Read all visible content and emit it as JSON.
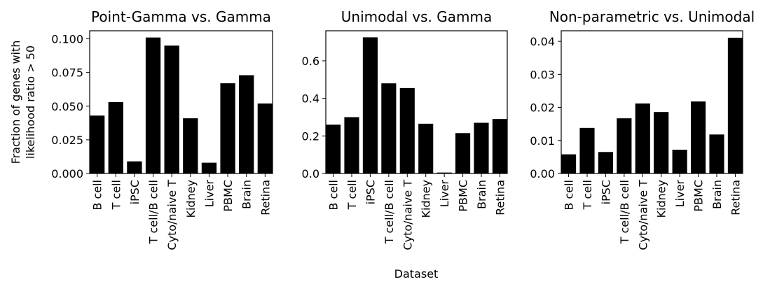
{
  "figure": {
    "ylabel_line1": "Fraction of genes with",
    "ylabel_line2": "likelihood ratio > 50",
    "xlabel": "Dataset"
  },
  "chart_data": [
    {
      "type": "bar",
      "title": "Point-Gamma vs. Gamma",
      "categories": [
        "B cell",
        "T cell",
        "iPSC",
        "T cell/B cell",
        "Cyto/naive T",
        "Kidney",
        "Liver",
        "PBMC",
        "Brain",
        "Retina"
      ],
      "values": [
        0.043,
        0.053,
        0.009,
        0.101,
        0.095,
        0.041,
        0.008,
        0.067,
        0.073,
        0.052
      ],
      "ylim": [
        0,
        0.106
      ],
      "yticks": [
        0.0,
        0.025,
        0.05,
        0.075,
        0.1
      ],
      "ytick_labels": [
        "0.000",
        "0.025",
        "0.050",
        "0.075",
        "0.100"
      ],
      "color": "#000000"
    },
    {
      "type": "bar",
      "title": "Unimodal vs. Gamma",
      "categories": [
        "B cell",
        "T cell",
        "iPSC",
        "T cell/B cell",
        "Cyto/naive T",
        "Kidney",
        "Liver",
        "PBMC",
        "Brain",
        "Retina"
      ],
      "values": [
        0.26,
        0.3,
        0.725,
        0.48,
        0.455,
        0.265,
        0.005,
        0.215,
        0.27,
        0.29
      ],
      "ylim": [
        0,
        0.76
      ],
      "yticks": [
        0.0,
        0.2,
        0.4,
        0.6
      ],
      "ytick_labels": [
        "0.0",
        "0.2",
        "0.4",
        "0.6"
      ],
      "color": "#000000"
    },
    {
      "type": "bar",
      "title": "Non-parametric vs. Unimodal",
      "categories": [
        "B cell",
        "T cell",
        "iPSC",
        "T cell/B cell",
        "Cyto/naive T",
        "Kidney",
        "Liver",
        "PBMC",
        "Brain",
        "Retina"
      ],
      "values": [
        0.0058,
        0.0138,
        0.0065,
        0.0167,
        0.0212,
        0.0186,
        0.0072,
        0.0218,
        0.0118,
        0.0411
      ],
      "ylim": [
        0,
        0.0432
      ],
      "yticks": [
        0.0,
        0.01,
        0.02,
        0.03,
        0.04
      ],
      "ytick_labels": [
        "0.00",
        "0.01",
        "0.02",
        "0.03",
        "0.04"
      ],
      "color": "#000000"
    }
  ]
}
